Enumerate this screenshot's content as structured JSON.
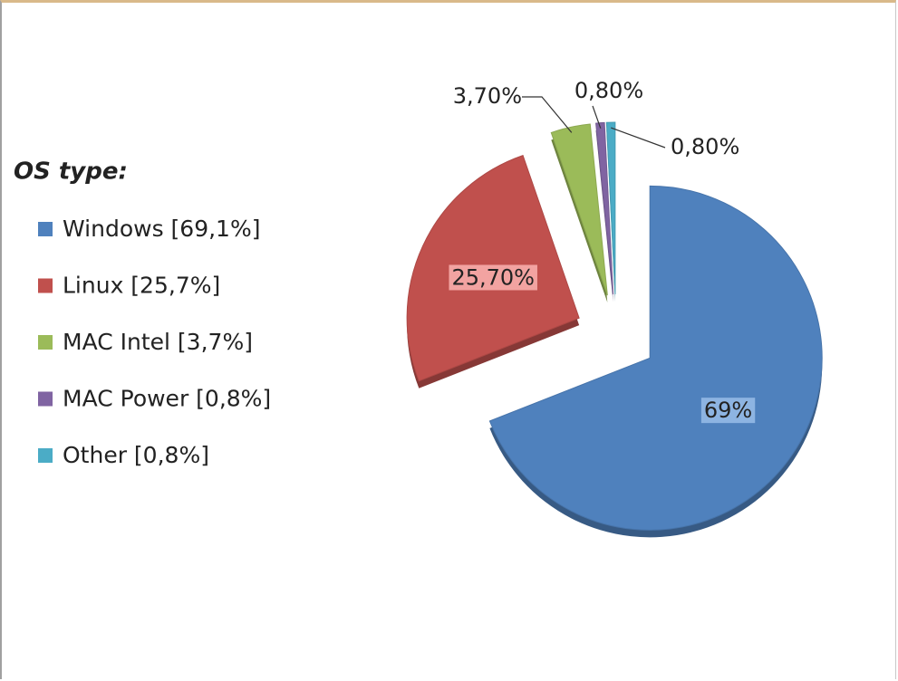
{
  "chart_data": {
    "type": "pie",
    "legend_title": "OS type:",
    "categories": [
      "Windows [69,1%]",
      "Linux [25,7%]",
      "MAC Intel [3,7%]",
      "MAC Power [0,8%]",
      "Other [0,8%]"
    ],
    "values": [
      69.1,
      25.7,
      3.7,
      0.8,
      0.8
    ],
    "value_labels": [
      "69%",
      "25,70%",
      "3,70%",
      "0,80%",
      "0,80%"
    ],
    "colors": [
      "#4f81bd",
      "#c0504d",
      "#9bbb59",
      "#8064a2",
      "#4bacc6"
    ],
    "legend": "left"
  }
}
